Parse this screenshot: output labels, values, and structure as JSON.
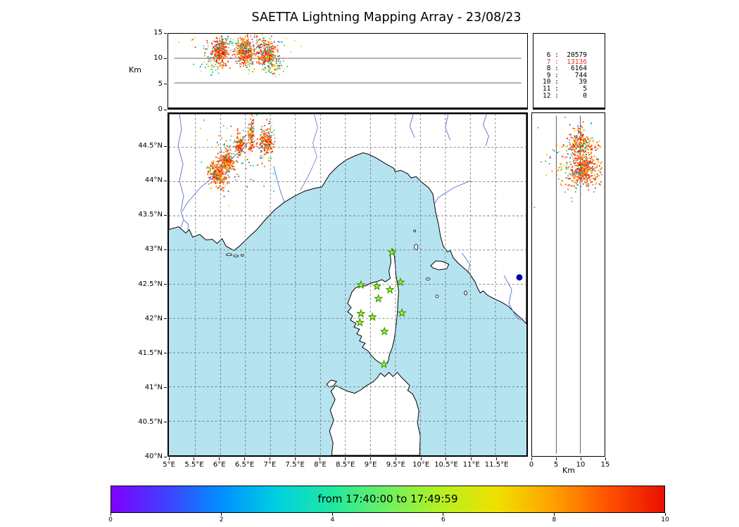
{
  "title": "SAETTA Lightning Mapping Array - 23/08/23",
  "colors": {
    "sea": "#b5e3f0",
    "land": "#ffffff",
    "coast": "#000000",
    "river": "#5b6bd5",
    "border_line": "#9a7fd1",
    "grid": "#777777",
    "panel_grid": "#333333",
    "lake": "#0000a8",
    "station_fill": "#aaf02e",
    "station_stroke": "#2f8f00",
    "stats_highlight": "#e8342a"
  },
  "palettes": {
    "storm": [
      [
        "#ff2a00",
        0.28
      ],
      [
        "#ff6a00",
        0.3
      ],
      [
        "#ff9500",
        0.12
      ],
      [
        "#e00000",
        0.1
      ],
      [
        "#00c8e8",
        0.05
      ],
      [
        "#00d264",
        0.05
      ],
      [
        "#9bf000",
        0.04
      ],
      [
        "#2a50ff",
        0.03
      ],
      [
        "#ffd800",
        0.03
      ]
    ],
    "mixed": [
      [
        "#00c8e8",
        0.2
      ],
      [
        "#2a50ff",
        0.15
      ],
      [
        "#00d264",
        0.15
      ],
      [
        "#9bf000",
        0.12
      ],
      [
        "#ffd800",
        0.1
      ],
      [
        "#ff6a00",
        0.14
      ],
      [
        "#ff2a00",
        0.14
      ]
    ]
  },
  "top_panel": {
    "ylabel": "Km",
    "yticks": [
      0,
      5,
      10,
      15
    ],
    "grid_km": [
      5,
      10
    ]
  },
  "right_panel": {
    "xlabel": "Km",
    "xticks": [
      0,
      5,
      10,
      15
    ],
    "grid_km": [
      5,
      10
    ]
  },
  "map": {
    "lon_range": [
      4.97,
      12.12
    ],
    "lat_range": [
      40.0,
      44.99
    ],
    "xticks": [
      {
        "v": 5,
        "l": "5°E"
      },
      {
        "v": 5.5,
        "l": "5.5°E"
      },
      {
        "v": 6,
        "l": "6°E"
      },
      {
        "v": 6.5,
        "l": "6.5°E"
      },
      {
        "v": 7,
        "l": "7°E"
      },
      {
        "v": 7.5,
        "l": "7.5°E"
      },
      {
        "v": 8,
        "l": "8°E"
      },
      {
        "v": 8.5,
        "l": "8.5°E"
      },
      {
        "v": 9,
        "l": "9°E"
      },
      {
        "v": 9.5,
        "l": "9.5°E"
      },
      {
        "v": 10,
        "l": "10°E"
      },
      {
        "v": 10.5,
        "l": "10.5°E"
      },
      {
        "v": 11,
        "l": "11°E"
      },
      {
        "v": 11.5,
        "l": "11.5°E"
      }
    ],
    "yticks": [
      {
        "v": 40,
        "l": "40°N"
      },
      {
        "v": 40.5,
        "l": "40.5°N"
      },
      {
        "v": 41,
        "l": "41°N"
      },
      {
        "v": 41.5,
        "l": "41.5°N"
      },
      {
        "v": 42,
        "l": "42°N"
      },
      {
        "v": 42.5,
        "l": "42.5°N"
      },
      {
        "v": 43,
        "l": "43°N"
      },
      {
        "v": 43.5,
        "l": "43.5°N"
      },
      {
        "v": 44,
        "l": "44°N"
      },
      {
        "v": 44.5,
        "l": "44.5°N"
      }
    ]
  },
  "colorbar": {
    "label": "from 17:40:00 to 17:49:59",
    "range": [
      0,
      10
    ],
    "ticks": [
      0,
      2,
      4,
      6,
      8,
      10
    ],
    "gradient_stops": [
      [
        "#8000ff",
        0
      ],
      [
        "#4040ff",
        10
      ],
      [
        "#0090ff",
        20
      ],
      [
        "#00d0e0",
        30
      ],
      [
        "#20e8a0",
        40
      ],
      [
        "#70f060",
        50
      ],
      [
        "#b8f020",
        60
      ],
      [
        "#f0e000",
        70
      ],
      [
        "#ffa000",
        80
      ],
      [
        "#ff5000",
        90
      ],
      [
        "#e81000",
        100
      ]
    ]
  },
  "chart_data": [
    {
      "type": "scatter",
      "name": "altitude_vs_longitude",
      "ylabel": "Km",
      "ylim": [
        0,
        15
      ],
      "yticks": [
        0,
        5,
        10,
        15
      ],
      "x_shared_with": "plan_view_longitude_deg_E",
      "clusters": [
        {
          "cx": 5.92,
          "cy": 11.5,
          "sx": 0.08,
          "sy": 1.4,
          "n": 300,
          "palette": "storm"
        },
        {
          "cx": 6.42,
          "cy": 11.2,
          "sx": 0.09,
          "sy": 1.5,
          "n": 320,
          "palette": "storm"
        },
        {
          "cx": 6.88,
          "cy": 10.8,
          "sx": 0.1,
          "sy": 1.4,
          "n": 260,
          "palette": "storm"
        },
        {
          "cx": 6.4,
          "cy": 12.8,
          "sx": 0.45,
          "sy": 0.9,
          "n": 150,
          "palette": "mixed"
        },
        {
          "cx": 7.05,
          "cy": 8.2,
          "sx": 0.12,
          "sy": 1.1,
          "n": 60,
          "palette": "mixed"
        },
        {
          "cx": 5.75,
          "cy": 9.5,
          "sx": 0.15,
          "sy": 1.5,
          "n": 40,
          "palette": "mixed"
        }
      ]
    },
    {
      "type": "table",
      "name": "vhf_sources_per_altitude_km",
      "columns": [
        "altitude_km",
        "sources"
      ],
      "rows": [
        [
          6,
          20579
        ],
        [
          7,
          13136
        ],
        [
          8,
          6164
        ],
        [
          9,
          744
        ],
        [
          10,
          39
        ],
        [
          11,
          5
        ],
        [
          12,
          0
        ]
      ],
      "highlight_row": 1
    },
    {
      "type": "map_scatter",
      "name": "plan_view_corsica_lma",
      "xlim": [
        4.97,
        12.12
      ],
      "ylim": [
        40.0,
        44.99
      ],
      "stations_lon_lat": [
        [
          9.43,
          42.97
        ],
        [
          8.81,
          42.49
        ],
        [
          9.13,
          42.47
        ],
        [
          9.39,
          42.42
        ],
        [
          9.6,
          42.53
        ],
        [
          9.16,
          42.29
        ],
        [
          8.81,
          42.07
        ],
        [
          9.04,
          42.02
        ],
        [
          9.63,
          42.08
        ],
        [
          8.79,
          41.94
        ],
        [
          9.28,
          41.81
        ],
        [
          9.27,
          41.33
        ]
      ],
      "lake_lon_lat": [
        11.98,
        42.6
      ],
      "clusters": [
        {
          "cx": 5.95,
          "cy": 44.12,
          "sx": 0.09,
          "sy": 0.1,
          "n": 260,
          "palette": "storm"
        },
        {
          "cx": 6.14,
          "cy": 44.3,
          "sx": 0.07,
          "sy": 0.08,
          "n": 180,
          "palette": "storm"
        },
        {
          "cx": 6.38,
          "cy": 44.54,
          "sx": 0.06,
          "sy": 0.08,
          "n": 120,
          "palette": "storm"
        },
        {
          "cx": 6.62,
          "cy": 44.68,
          "sx": 0.03,
          "sy": 0.12,
          "n": 110,
          "palette": "storm"
        },
        {
          "cx": 6.92,
          "cy": 44.58,
          "sx": 0.08,
          "sy": 0.1,
          "n": 200,
          "palette": "storm"
        },
        {
          "cx": 6.5,
          "cy": 44.4,
          "sx": 0.45,
          "sy": 0.3,
          "n": 80,
          "palette": "mixed"
        }
      ]
    },
    {
      "type": "scatter",
      "name": "altitude_vs_latitude",
      "xlabel": "Km",
      "xlim": [
        0,
        15
      ],
      "xticks": [
        0,
        5,
        10,
        15
      ],
      "y_shared_with": "plan_view_latitude_deg_N",
      "clusters": [
        {
          "cx": 10.5,
          "cy": 44.12,
          "sx": 1.8,
          "sy": 0.1,
          "n": 260,
          "palette": "storm"
        },
        {
          "cx": 10.8,
          "cy": 44.3,
          "sx": 1.6,
          "sy": 0.08,
          "n": 180,
          "palette": "storm"
        },
        {
          "cx": 10.2,
          "cy": 44.54,
          "sx": 1.5,
          "sy": 0.07,
          "n": 120,
          "palette": "storm"
        },
        {
          "cx": 10.0,
          "cy": 44.66,
          "sx": 1.2,
          "sy": 0.08,
          "n": 100,
          "palette": "storm"
        },
        {
          "cx": 8.0,
          "cy": 44.35,
          "sx": 3.2,
          "sy": 0.28,
          "n": 90,
          "palette": "mixed"
        }
      ]
    },
    {
      "type": "colorbar",
      "name": "time_colorbar",
      "label": "from 17:40:00 to 17:49:59",
      "range": [
        0,
        10
      ],
      "ticks": [
        0,
        2,
        4,
        6,
        8,
        10
      ]
    }
  ]
}
